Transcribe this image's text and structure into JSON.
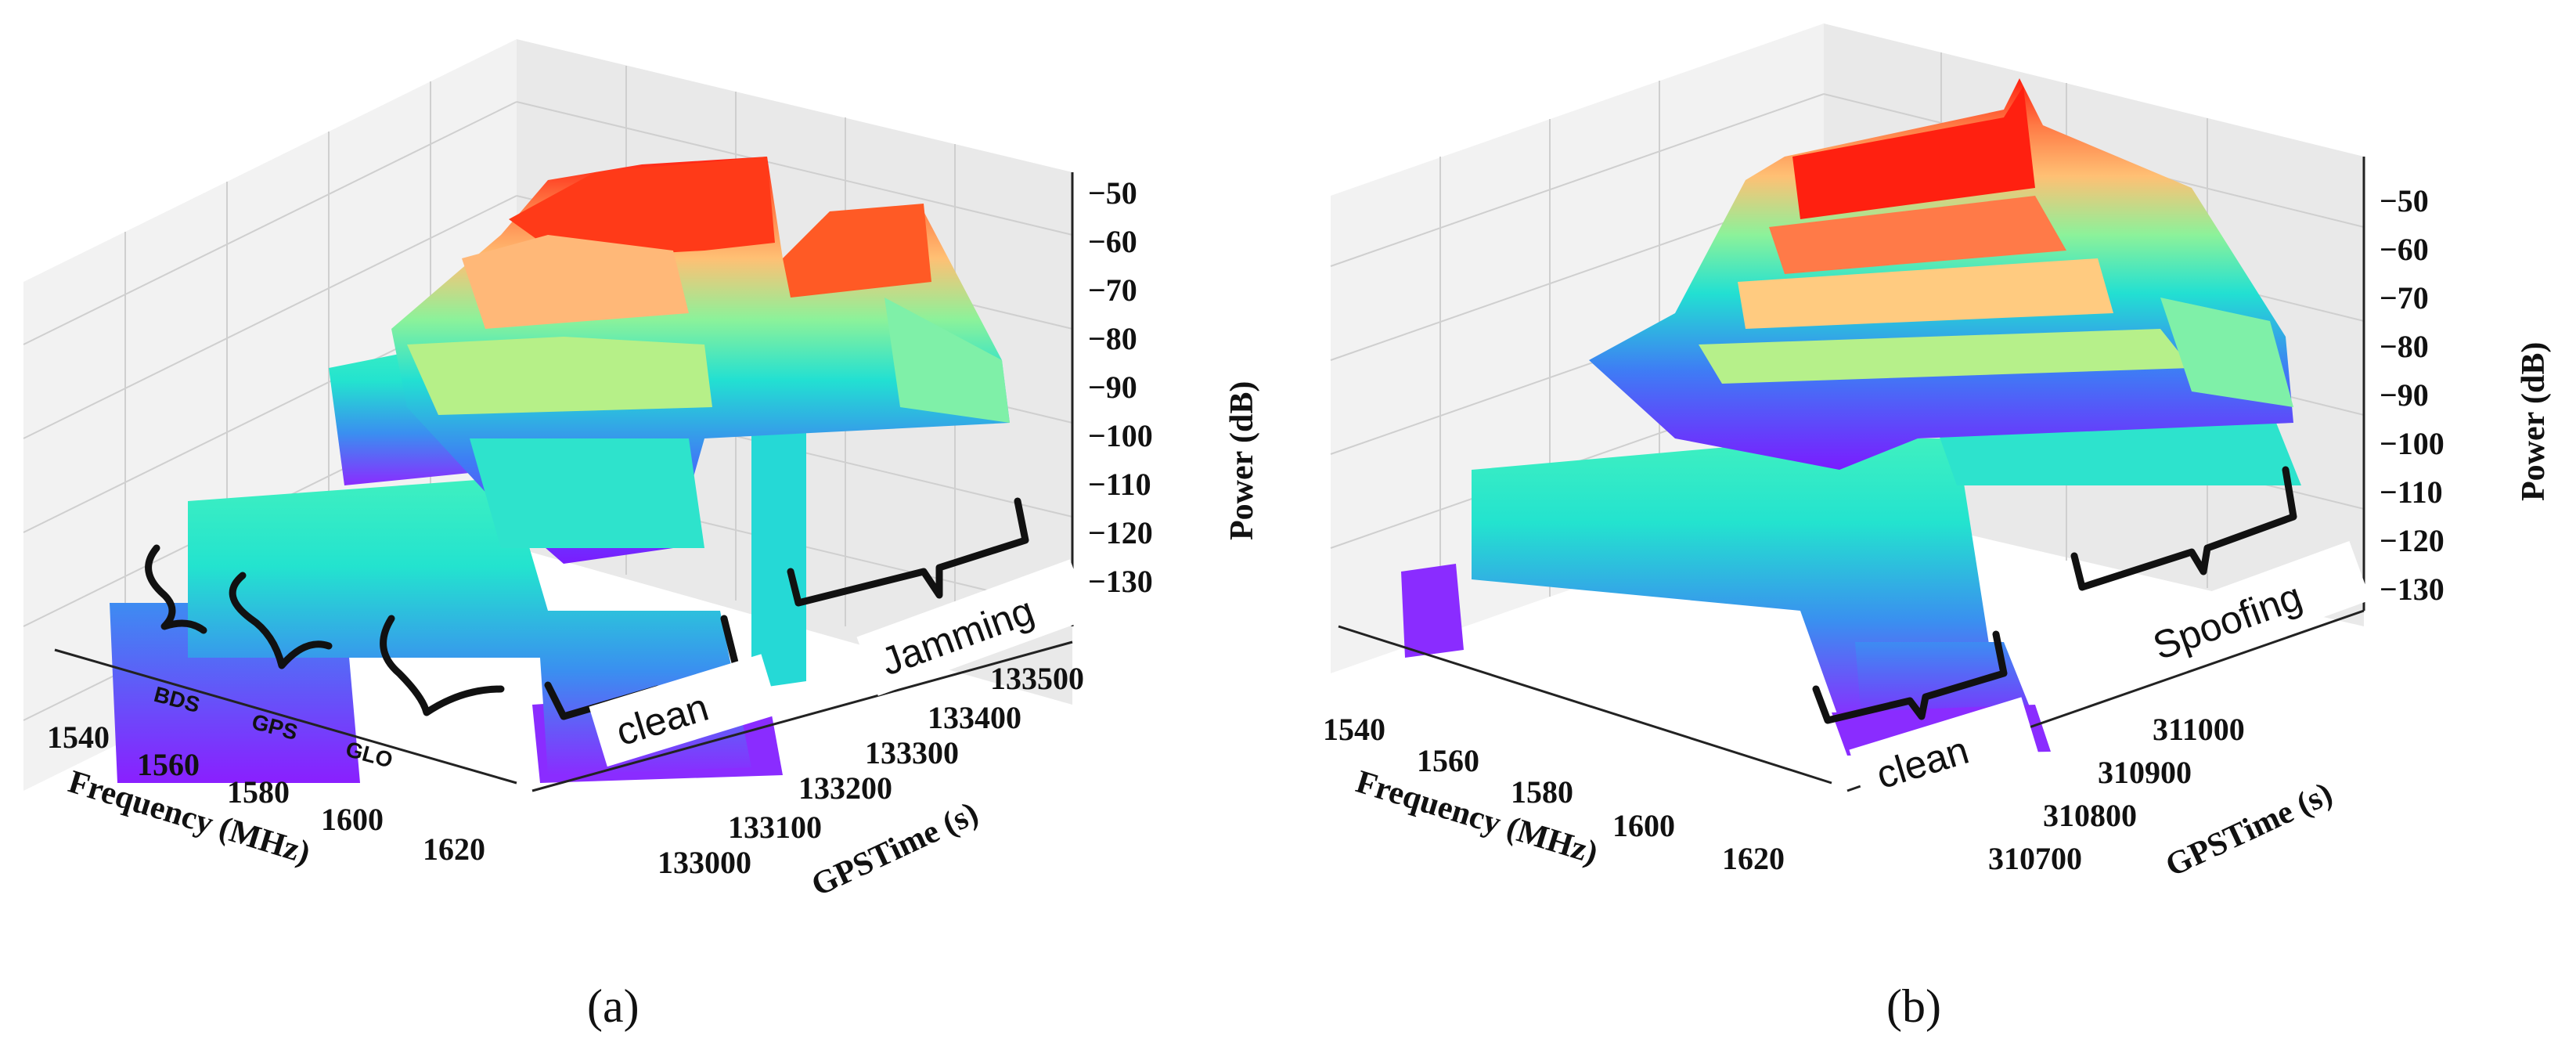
{
  "chart_data": [
    {
      "panel": "a",
      "type": "surface3d",
      "caption": "(a)",
      "xlabel": "Frequency (MHz)",
      "ylabel": "GPSTime (s)",
      "zlabel": "Power (dB)",
      "x_ticks": [
        "1540",
        "1560",
        "1580",
        "1600",
        "1620"
      ],
      "y_ticks": [
        "133000",
        "133100",
        "133200",
        "133300",
        "133400",
        "133500"
      ],
      "z_ticks": [
        "−50",
        "−60",
        "−70",
        "−80",
        "−90",
        "−100",
        "−110",
        "−120",
        "−130"
      ],
      "xlim": [
        1530,
        1630
      ],
      "ylim": [
        133000,
        133500
      ],
      "zlim": [
        -130,
        -45
      ],
      "grid": true,
      "colormap": "rainbow",
      "band_labels": [
        "BDS",
        "GPS",
        "GLO"
      ],
      "annotations": [
        "clean",
        "Jamming"
      ]
    },
    {
      "panel": "b",
      "type": "surface3d",
      "caption": "(b)",
      "xlabel": "Frequency (MHz)",
      "ylabel": "GPSTime (s)",
      "zlabel": "Power (dB)",
      "x_ticks": [
        "1540",
        "1560",
        "1580",
        "1600",
        "1620"
      ],
      "y_ticks": [
        "310700",
        "310800",
        "310900",
        "311000"
      ],
      "z_ticks": [
        "−50",
        "−60",
        "−70",
        "−80",
        "−90",
        "−100",
        "−110",
        "−120",
        "−130"
      ],
      "xlim": [
        1530,
        1630
      ],
      "ylim": [
        310700,
        311050
      ],
      "zlim": [
        -130,
        -45
      ],
      "grid": true,
      "colormap": "rainbow",
      "annotations": [
        "clean",
        "Spoofing"
      ]
    }
  ]
}
